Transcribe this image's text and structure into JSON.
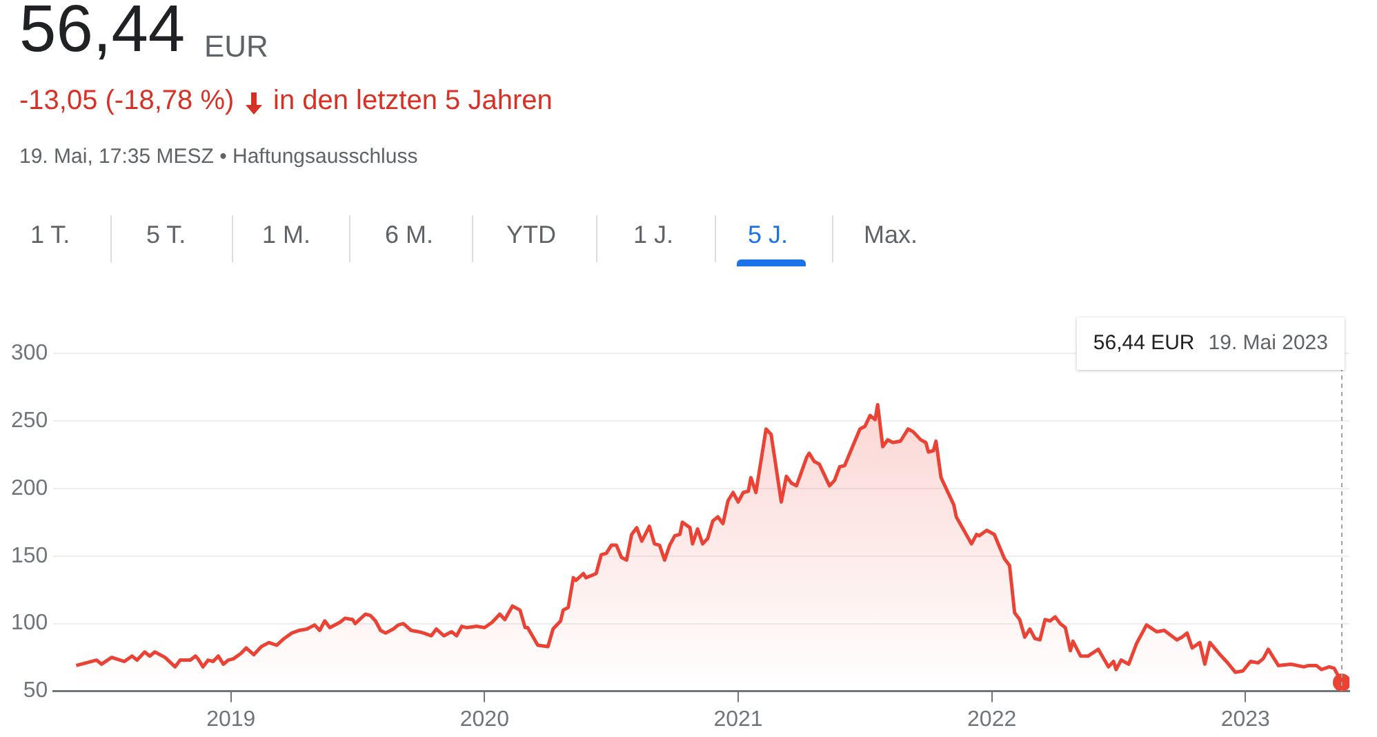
{
  "chart_data": {
    "type": "area",
    "title": "56,44",
    "subtitle": "EUR",
    "annotations": [
      "-13,05 (-18,78 %)",
      "in den letzten 5 Jahren",
      "19. Mai, 17:35 MESZ • Haftungsausschluss",
      "1 T.",
      "5 T.",
      "1 M.",
      "6 M.",
      "YTD",
      "1 J.",
      "5 J.",
      "Max.",
      "56,44 EUR",
      "19. Mai 2023"
    ],
    "series": [
      {
        "color": "#ea4335",
        "x": [
          2018.39,
          2018.47,
          2018.49,
          2018.53,
          2018.58,
          2018.61,
          2018.63,
          2018.66,
          2018.68,
          2018.7,
          2018.74,
          2018.78,
          2018.8,
          2018.84,
          2018.86,
          2018.87,
          2018.89,
          2018.91,
          2018.93,
          2018.95,
          2018.97,
          2018.99,
          2019.01,
          2019.04,
          2019.06,
          2019.09,
          2019.12,
          2019.15,
          2019.18,
          2019.21,
          2019.24,
          2019.27,
          2019.3,
          2019.33,
          2019.35,
          2019.37,
          2019.39,
          2019.43,
          2019.45,
          2019.48,
          2019.49,
          2019.53,
          2019.55,
          2019.57,
          2019.59,
          2019.61,
          2019.64,
          2019.66,
          2019.68,
          2019.71,
          2019.74,
          2019.76,
          2019.79,
          2019.81,
          2019.84,
          2019.87,
          2019.89,
          2019.91,
          2019.93,
          2019.97,
          2020.0,
          2020.03,
          2020.06,
          2020.08,
          2020.11,
          2020.14,
          2020.16,
          2020.17,
          2020.21,
          2020.25,
          2020.27,
          2020.3,
          2020.31,
          2020.33,
          2020.35,
          2020.36,
          2020.39,
          2020.4,
          2020.44,
          2020.46,
          2020.48,
          2020.5,
          2020.52,
          2020.54,
          2020.56,
          2020.58,
          2020.6,
          2020.62,
          2020.65,
          2020.67,
          2020.69,
          2020.71,
          2020.73,
          2020.75,
          2020.77,
          2020.78,
          2020.81,
          2020.82,
          2020.84,
          2020.86,
          2020.88,
          2020.9,
          2020.92,
          2020.94,
          2020.96,
          2020.98,
          2021.0,
          2021.02,
          2021.04,
          2021.05,
          2021.07,
          2021.11,
          2021.13,
          2021.17,
          2021.19,
          2021.21,
          2021.23,
          2021.27,
          2021.28,
          2021.3,
          2021.32,
          2021.36,
          2021.38,
          2021.4,
          2021.42,
          2021.46,
          2021.48,
          2021.5,
          2021.52,
          2021.54,
          2021.55,
          2021.57,
          2021.59,
          2021.61,
          2021.64,
          2021.67,
          2021.69,
          2021.72,
          2021.74,
          2021.75,
          2021.77,
          2021.78,
          2021.8,
          2021.82,
          2021.85,
          2021.86,
          2021.89,
          2021.92,
          2021.94,
          2021.95,
          2021.98,
          2022.01,
          2022.05,
          2022.07,
          2022.09,
          2022.11,
          2022.13,
          2022.15,
          2022.17,
          2022.19,
          2022.21,
          2022.23,
          2022.25,
          2022.27,
          2022.29,
          2022.31,
          2022.32,
          2022.35,
          2022.38,
          2022.42,
          2022.46,
          2022.48,
          2022.49,
          2022.51,
          2022.54,
          2022.57,
          2022.61,
          2022.65,
          2022.68,
          2022.73,
          2022.75,
          2022.77,
          2022.79,
          2022.82,
          2022.84,
          2022.86,
          2022.9,
          2022.93,
          2022.96,
          2022.99,
          2023.02,
          2023.05,
          2023.07,
          2023.09,
          2023.13,
          2023.18,
          2023.23,
          2023.25,
          2023.28,
          2023.3,
          2023.33,
          2023.35,
          2023.38
        ],
        "values": [
          69,
          73,
          70,
          75,
          72,
          76,
          73,
          79,
          76,
          79,
          75,
          68,
          73,
          73,
          76,
          74,
          68,
          73,
          72,
          76,
          70,
          73,
          74,
          78,
          82,
          77,
          83,
          86,
          84,
          89,
          93,
          95,
          96,
          99,
          95,
          102,
          97,
          101,
          104,
          103,
          100,
          107,
          106,
          102,
          95,
          93,
          96,
          99,
          100,
          95,
          94,
          93,
          91,
          96,
          91,
          94,
          91,
          98,
          97,
          98,
          97,
          101,
          107,
          103,
          113,
          110,
          97,
          97,
          84,
          83,
          96,
          102,
          110,
          112,
          134,
          132,
          137,
          134,
          137,
          151,
          152,
          158,
          158,
          149,
          147,
          166,
          171,
          161,
          172,
          159,
          158,
          147,
          158,
          165,
          166,
          175,
          171,
          159,
          170,
          159,
          163,
          176,
          179,
          174,
          191,
          197,
          190,
          197,
          198,
          208,
          197,
          244,
          240,
          190,
          209,
          204,
          202,
          223,
          226,
          220,
          218,
          202,
          206,
          216,
          217,
          235,
          244,
          246,
          254,
          251,
          262,
          231,
          236,
          234,
          235,
          244,
          242,
          236,
          234,
          227,
          228,
          235,
          208,
          200,
          188,
          179,
          169,
          159,
          166,
          165,
          169,
          166,
          148,
          143,
          108,
          103,
          90,
          96,
          89,
          88,
          103,
          102,
          105,
          100,
          97,
          80,
          87,
          76,
          76,
          81,
          68,
          72,
          66,
          73,
          70,
          85,
          99,
          94,
          95,
          88,
          90,
          93,
          82,
          86,
          70,
          86,
          77,
          71,
          64,
          65,
          72,
          71,
          74,
          81,
          69,
          70,
          68,
          69,
          69,
          66,
          68,
          67,
          56.44
        ]
      },
      {
        "type": "scatter",
        "color": "#ea4335",
        "x": [
          2023.38
        ],
        "values": [
          56.44
        ]
      }
    ],
    "xlim": [
      2018.3,
      2023.41
    ],
    "xticks": [
      2019,
      2020,
      2021,
      2022,
      2023
    ],
    "ylim": [
      50,
      300
    ],
    "yticks": [
      50,
      100,
      150,
      200,
      250,
      300
    ],
    "grid": "y",
    "legend": false,
    "ref_lines": [
      {
        "axis": "x",
        "value": 2023.38,
        "color": "#9e9e9e",
        "line_style": "dashed"
      }
    ]
  }
}
